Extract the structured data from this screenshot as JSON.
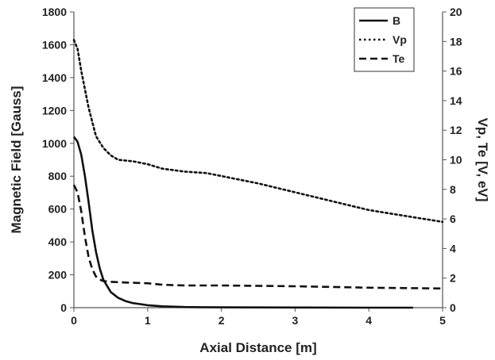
{
  "chart_data": {
    "type": "line",
    "xlabel": "Axial Distance [m]",
    "ylabel_left": "Magnetic Field [Gauss]",
    "ylabel_right": "Vp, Te [V, eV]",
    "xlim": [
      0,
      5
    ],
    "ylim_left": [
      0,
      1800
    ],
    "ylim_right": [
      0,
      20
    ],
    "x_ticks": [
      0,
      1,
      2,
      3,
      4,
      5
    ],
    "y_left_ticks": [
      0,
      200,
      400,
      600,
      800,
      1000,
      1200,
      1400,
      1600,
      1800
    ],
    "y_right_ticks": [
      0,
      2,
      4,
      6,
      8,
      10,
      12,
      14,
      16,
      18,
      20
    ],
    "grid": false,
    "legend_position": "top-right",
    "series": [
      {
        "name": "B",
        "axis": "left",
        "style": "solid",
        "color": "#111111",
        "x": [
          0,
          0.05,
          0.1,
          0.15,
          0.2,
          0.25,
          0.3,
          0.35,
          0.4,
          0.5,
          0.6,
          0.7,
          0.8,
          1.0,
          1.2,
          1.5,
          2.0,
          3.0,
          4.0,
          4.6
        ],
        "y": [
          1040,
          1010,
          930,
          800,
          640,
          470,
          340,
          240,
          170,
          95,
          60,
          40,
          28,
          15,
          8,
          4,
          2,
          1,
          0,
          0
        ]
      },
      {
        "name": "Vp",
        "axis": "right",
        "style": "dotted",
        "color": "#111111",
        "x": [
          0,
          0.05,
          0.1,
          0.2,
          0.3,
          0.4,
          0.5,
          0.6,
          0.8,
          1.0,
          1.2,
          1.5,
          1.8,
          2.0,
          2.5,
          3.0,
          3.5,
          4.0,
          4.5,
          5.0
        ],
        "y": [
          18.1,
          17.5,
          16.0,
          13.5,
          11.6,
          10.8,
          10.3,
          10.0,
          9.9,
          9.7,
          9.4,
          9.2,
          9.1,
          8.9,
          8.4,
          7.8,
          7.2,
          6.6,
          6.2,
          5.8
        ]
      },
      {
        "name": "Te",
        "axis": "right",
        "style": "dashed",
        "color": "#111111",
        "x": [
          0,
          0.05,
          0.1,
          0.15,
          0.2,
          0.25,
          0.3,
          0.35,
          0.4,
          0.5,
          0.7,
          1.0,
          1.2,
          1.5,
          2.0,
          3.0,
          4.0,
          5.0
        ],
        "y": [
          8.3,
          7.8,
          6.5,
          4.8,
          3.4,
          2.6,
          2.1,
          1.9,
          1.8,
          1.75,
          1.7,
          1.65,
          1.55,
          1.5,
          1.5,
          1.45,
          1.35,
          1.3
        ]
      }
    ]
  }
}
